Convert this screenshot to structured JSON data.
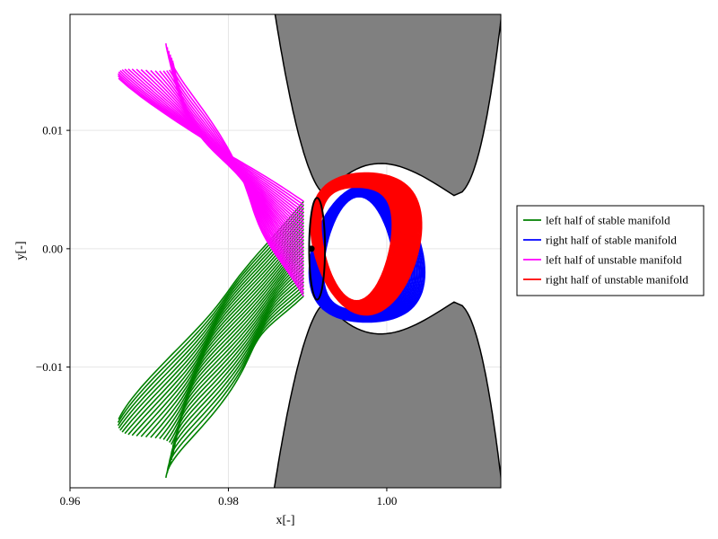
{
  "chart_data": {
    "type": "line",
    "title": "",
    "xlabel": "x[-]",
    "ylabel": "y[-]",
    "xlim": [
      0.96,
      1.0144
    ],
    "ylim": [
      -0.0202,
      0.0198
    ],
    "x_ticks": [
      0.96,
      0.98,
      1.0
    ],
    "x_tick_labels": [
      "0.96",
      "0.98",
      "1.00"
    ],
    "y_ticks": [
      -0.01,
      0.0,
      0.01
    ],
    "y_tick_labels": [
      "−0.01",
      "0.00",
      "0.01"
    ],
    "grid": true,
    "legend_position": "outside-right",
    "series": [
      {
        "name": "left half of stable manifold",
        "color": "#008000"
      },
      {
        "name": "right half of stable manifold",
        "color": "#0000ff"
      },
      {
        "name": "left half of unstable manifold",
        "color": "#ff00ff"
      },
      {
        "name": "right half of unstable manifold",
        "color": "#ff0000"
      }
    ],
    "forbidden_region_color": "#808080",
    "periodic_orbit_color": "#000000",
    "equilibrium_point": [
      0.9905,
      0.0
    ]
  }
}
